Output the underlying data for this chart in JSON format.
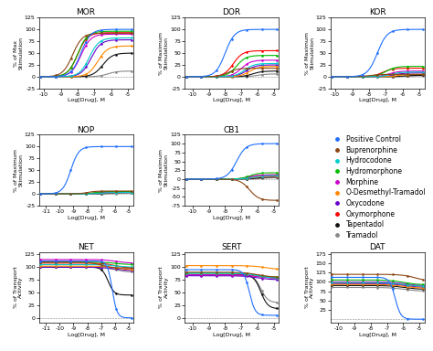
{
  "compounds": [
    "Positive Control",
    "Buprenorphine",
    "Hydrocodone",
    "Hydromorphone",
    "Morphine",
    "O-Desmethyl-Tramadol",
    "Oxycodone",
    "Oxymorphone",
    "Tapentadol",
    "Tramadol"
  ],
  "colors": [
    "#1E6FFF",
    "#8B4513",
    "#00CCCC",
    "#00BB00",
    "#CC00CC",
    "#FF8800",
    "#6600CC",
    "#FF0000",
    "#111111",
    "#888888"
  ],
  "subplots": {
    "MOR": {
      "xlabel": "Log[Drug], M",
      "ylabel": "% of Max\nStimulation",
      "xlim": [
        -10.3,
        -4.7
      ],
      "ylim": [
        -25,
        125
      ],
      "yticks": [
        -25,
        0,
        25,
        50,
        75,
        100,
        125
      ],
      "xticks": [
        -10,
        -9,
        -8,
        -7,
        -6,
        -5
      ],
      "curves": {
        "Positive Control": {
          "EC50": -7.8,
          "Emax": 100,
          "base": 0,
          "hill": 1.5
        },
        "Buprenorphine": {
          "EC50": -8.3,
          "Emax": 92,
          "base": 0,
          "hill": 1.5
        },
        "Hydromorphone": {
          "EC50": -8.0,
          "Emax": 96,
          "base": 0,
          "hill": 1.5
        },
        "Morphine": {
          "EC50": -7.8,
          "Emax": 90,
          "base": 0,
          "hill": 1.5
        },
        "Oxymorphone": {
          "EC50": -8.0,
          "Emax": 93,
          "base": 0,
          "hill": 1.5
        },
        "Hydrocodone": {
          "EC50": -7.3,
          "Emax": 82,
          "base": 0,
          "hill": 1.5
        },
        "Oxycodone": {
          "EC50": -7.2,
          "Emax": 78,
          "base": 0,
          "hill": 1.5
        },
        "O-Desmethyl-Tramadol": {
          "EC50": -6.8,
          "Emax": 65,
          "base": 0,
          "hill": 1.5
        },
        "Tapentadol": {
          "EC50": -6.5,
          "Emax": 50,
          "base": 0,
          "hill": 1.5
        },
        "Tramadol": {
          "EC50": -6.2,
          "Emax": 12,
          "base": 0,
          "hill": 1.5
        }
      }
    },
    "DOR": {
      "xlabel": "Log[Drug], M",
      "ylabel": "% of Maximum\nStimulation",
      "xlim": [
        -10.5,
        -4.7
      ],
      "ylim": [
        -25,
        125
      ],
      "yticks": [
        -25,
        0,
        25,
        50,
        75,
        100,
        125
      ],
      "xticks": [
        -10,
        -9,
        -8,
        -7,
        -6,
        -5
      ],
      "curves": {
        "Positive Control": {
          "EC50": -8.0,
          "Emax": 100,
          "base": 0,
          "hill": 1.5
        },
        "Oxymorphone": {
          "EC50": -7.5,
          "Emax": 55,
          "base": 0,
          "hill": 1.5
        },
        "Hydromorphone": {
          "EC50": -7.3,
          "Emax": 45,
          "base": 0,
          "hill": 1.5
        },
        "Morphine": {
          "EC50": -7.0,
          "Emax": 35,
          "base": 0,
          "hill": 1.5
        },
        "Hydrocodone": {
          "EC50": -6.8,
          "Emax": 28,
          "base": 0,
          "hill": 1.5
        },
        "Oxycodone": {
          "EC50": -6.7,
          "Emax": 25,
          "base": 0,
          "hill": 1.5
        },
        "O-Desmethyl-Tramadol": {
          "EC50": -6.5,
          "Emax": 22,
          "base": 0,
          "hill": 1.5
        },
        "Buprenorphine": {
          "EC50": -7.8,
          "Emax": 18,
          "base": 0,
          "hill": 1.5
        },
        "Tapentadol": {
          "EC50": -6.3,
          "Emax": 12,
          "base": 0,
          "hill": 1.5
        },
        "Tramadol": {
          "EC50": -6.0,
          "Emax": 6,
          "base": 0,
          "hill": 1.5
        }
      }
    },
    "KOR": {
      "xlabel": "Log[Drug], M",
      "ylabel": "% of Maximum\nStimulation",
      "xlim": [
        -10.3,
        -4.7
      ],
      "ylim": [
        -25,
        125
      ],
      "yticks": [
        -25,
        0,
        25,
        50,
        75,
        100,
        125
      ],
      "xticks": [
        -10,
        -9,
        -8,
        -7,
        -6,
        -5
      ],
      "curves": {
        "Positive Control": {
          "EC50": -7.5,
          "Emax": 100,
          "base": 0,
          "hill": 1.5
        },
        "Hydromorphone": {
          "EC50": -7.0,
          "Emax": 22,
          "base": 0,
          "hill": 1.5
        },
        "Oxymorphone": {
          "EC50": -7.2,
          "Emax": 18,
          "base": 0,
          "hill": 1.5
        },
        "Morphine": {
          "EC50": -6.8,
          "Emax": 12,
          "base": 0,
          "hill": 1.5
        },
        "Hydrocodone": {
          "EC50": -6.7,
          "Emax": 10,
          "base": 0,
          "hill": 1.5
        },
        "Oxycodone": {
          "EC50": -6.5,
          "Emax": 8,
          "base": 0,
          "hill": 1.5
        },
        "Buprenorphine": {
          "EC50": -8.0,
          "Emax": 5,
          "base": 0,
          "hill": 1.5
        },
        "O-Desmethyl-Tramadol": {
          "EC50": -6.3,
          "Emax": 5,
          "base": 0,
          "hill": 1.5
        },
        "Tapentadol": {
          "EC50": -6.0,
          "Emax": 3,
          "base": 0,
          "hill": 1.5
        },
        "Tramadol": {
          "EC50": -5.8,
          "Emax": 2,
          "base": 0,
          "hill": 1.5
        }
      }
    },
    "NOP": {
      "xlabel": "Log[Drug], M",
      "ylabel": "% of Maximum\nStimulation",
      "xlim": [
        -11.5,
        -4.7
      ],
      "ylim": [
        -25,
        125
      ],
      "yticks": [
        -25,
        0,
        25,
        50,
        75,
        100,
        125
      ],
      "xticks": [
        -11,
        -10,
        -9,
        -8,
        -7,
        -6,
        -5
      ],
      "curves": {
        "Positive Control": {
          "EC50": -9.2,
          "Emax": 100,
          "base": 0,
          "hill": 1.5
        },
        "Buprenorphine": {
          "EC50": -8.0,
          "Emax": 6,
          "base": 0,
          "hill": 1.5
        },
        "Hydromorphone": {
          "EC50": -7.5,
          "Emax": 5,
          "base": 0,
          "hill": 1.5
        },
        "Morphine": {
          "EC50": -7.2,
          "Emax": 4,
          "base": 0,
          "hill": 1.5
        },
        "Oxymorphone": {
          "EC50": -7.5,
          "Emax": 4,
          "base": 0,
          "hill": 1.5
        },
        "Hydrocodone": {
          "EC50": -7.0,
          "Emax": 3,
          "base": 0,
          "hill": 1.5
        },
        "O-Desmethyl-Tramadol": {
          "EC50": -7.0,
          "Emax": 3,
          "base": 0,
          "hill": 1.5
        },
        "Oxycodone": {
          "EC50": -7.0,
          "Emax": 3,
          "base": 0,
          "hill": 1.5
        },
        "Tapentadol": {
          "EC50": -6.5,
          "Emax": 3,
          "base": 0,
          "hill": 1.5
        },
        "Tramadol": {
          "EC50": -6.0,
          "Emax": 2,
          "base": 0,
          "hill": 1.5
        }
      }
    },
    "CB1": {
      "xlabel": "Log[Drug], M",
      "ylabel": "% of Maximum\nStimulation",
      "xlim": [
        -10.5,
        -4.7
      ],
      "ylim": [
        -75,
        125
      ],
      "yticks": [
        -75,
        -50,
        -25,
        0,
        25,
        50,
        75,
        100,
        125
      ],
      "xticks": [
        -10,
        -9,
        -8,
        -7,
        -6,
        -5
      ],
      "curves": {
        "Positive Control": {
          "EC50": -7.3,
          "Emax": 100,
          "base": 0,
          "hill": 1.5
        },
        "Buprenorphine": {
          "EC50": -6.5,
          "Emax": -60,
          "base": 0,
          "hill": 1.5
        },
        "Hydromorphone": {
          "EC50": -6.5,
          "Emax": 18,
          "base": 0,
          "hill": 1.5
        },
        "Morphine": {
          "EC50": -6.5,
          "Emax": 12,
          "base": 0,
          "hill": 1.5
        },
        "Oxymorphone": {
          "EC50": -6.5,
          "Emax": 12,
          "base": 0,
          "hill": 1.5
        },
        "Hydrocodone": {
          "EC50": -6.3,
          "Emax": 10,
          "base": 0,
          "hill": 1.5
        },
        "Oxycodone": {
          "EC50": -6.3,
          "Emax": 8,
          "base": 0,
          "hill": 1.5
        },
        "O-Desmethyl-Tramadol": {
          "EC50": -6.3,
          "Emax": 8,
          "base": 0,
          "hill": 1.5
        },
        "Tapentadol": {
          "EC50": -6.0,
          "Emax": 6,
          "base": 0,
          "hill": 1.5
        },
        "Tramadol": {
          "EC50": -5.8,
          "Emax": 4,
          "base": 0,
          "hill": 1.5
        }
      }
    },
    "NET": {
      "xlabel": "Log[Drug], M",
      "ylabel": "% of Transport\nActivity",
      "xlim": [
        -11.5,
        -4.7
      ],
      "ylim": [
        -10,
        130
      ],
      "yticks": [
        0,
        25,
        50,
        75,
        100,
        125
      ],
      "xticks": [
        -11,
        -10,
        -9,
        -8,
        -7,
        -6,
        -5
      ],
      "inhibition": true,
      "curves": {
        "Positive Control": {
          "EC50": -6.2,
          "Emin": 0,
          "base": 112,
          "hill": 2.5
        },
        "Morphine": {
          "EC50": -6.0,
          "Emin": 108,
          "base": 115,
          "hill": 1.0
        },
        "Hydromorphone": {
          "EC50": -6.0,
          "Emin": 105,
          "base": 110,
          "hill": 1.0
        },
        "Buprenorphine": {
          "EC50": -7.0,
          "Emin": 98,
          "base": 110,
          "hill": 1.0
        },
        "Hydrocodone": {
          "EC50": -6.0,
          "Emin": 100,
          "base": 105,
          "hill": 1.0
        },
        "Oxymorphone": {
          "EC50": -6.0,
          "Emin": 98,
          "base": 108,
          "hill": 1.0
        },
        "O-Desmethyl-Tramadol": {
          "EC50": -6.0,
          "Emin": 95,
          "base": 102,
          "hill": 1.0
        },
        "Oxycodone": {
          "EC50": -6.0,
          "Emin": 93,
          "base": 100,
          "hill": 1.0
        },
        "Tapentadol": {
          "EC50": -6.5,
          "Emin": 45,
          "base": 100,
          "hill": 2.0
        },
        "Tramadol": {
          "EC50": -6.0,
          "Emin": 90,
          "base": 100,
          "hill": 1.0
        }
      }
    },
    "SERT": {
      "xlabel": "Log[Drug], M",
      "ylabel": "% of Transport\nActivity",
      "xlim": [
        -10.5,
        -4.7
      ],
      "ylim": [
        -10,
        130
      ],
      "yticks": [
        0,
        25,
        50,
        75,
        100,
        125
      ],
      "xticks": [
        -10,
        -9,
        -8,
        -7,
        -6,
        -5
      ],
      "inhibition": true,
      "curves": {
        "Positive Control": {
          "EC50": -6.5,
          "Emin": 5,
          "base": 95,
          "hill": 2.5
        },
        "Tapentadol": {
          "EC50": -5.8,
          "Emin": 18,
          "base": 85,
          "hill": 2.0
        },
        "Tramadol": {
          "EC50": -5.8,
          "Emin": 30,
          "base": 85,
          "hill": 2.0
        },
        "O-Desmethyl-Tramadol": {
          "EC50": -5.5,
          "Emin": 95,
          "base": 103,
          "hill": 1.0
        },
        "Buprenorphine": {
          "EC50": -6.0,
          "Emin": 80,
          "base": 90,
          "hill": 1.0
        },
        "Hydrocodone": {
          "EC50": -6.0,
          "Emin": 78,
          "base": 88,
          "hill": 1.0
        },
        "Hydromorphone": {
          "EC50": -6.0,
          "Emin": 80,
          "base": 88,
          "hill": 1.0
        },
        "Morphine": {
          "EC50": -6.0,
          "Emin": 78,
          "base": 85,
          "hill": 1.0
        },
        "Oxycodone": {
          "EC50": -6.0,
          "Emin": 75,
          "base": 83,
          "hill": 1.0
        },
        "Oxymorphone": {
          "EC50": -6.0,
          "Emin": 78,
          "base": 85,
          "hill": 1.0
        }
      }
    },
    "DAT": {
      "xlabel": "Log[Drug], M",
      "ylabel": "% of Transport\nActivity",
      "xlim": [
        -10.5,
        -4.7
      ],
      "ylim": [
        -10,
        180
      ],
      "yticks": [
        25,
        50,
        75,
        100,
        125,
        150,
        175
      ],
      "xticks": [
        -10,
        -9,
        -8,
        -7,
        -6,
        -5
      ],
      "inhibition": true,
      "curves": {
        "Positive Control": {
          "EC50": -6.5,
          "Emin": 0,
          "base": 112,
          "hill": 2.5
        },
        "Buprenorphine": {
          "EC50": -5.2,
          "Emin": 100,
          "base": 120,
          "hill": 1.0,
          "rising": true
        },
        "Hydromorphone": {
          "EC50": -6.0,
          "Emin": 92,
          "base": 105,
          "hill": 1.0
        },
        "Morphine": {
          "EC50": -6.0,
          "Emin": 90,
          "base": 100,
          "hill": 1.0
        },
        "Oxymorphone": {
          "EC50": -6.0,
          "Emin": 88,
          "base": 98,
          "hill": 1.0
        },
        "Hydrocodone": {
          "EC50": -6.0,
          "Emin": 88,
          "base": 98,
          "hill": 1.0
        },
        "Oxycodone": {
          "EC50": -6.0,
          "Emin": 85,
          "base": 95,
          "hill": 1.0
        },
        "O-Desmethyl-Tramadol": {
          "EC50": -6.0,
          "Emin": 83,
          "base": 93,
          "hill": 1.0
        },
        "Tapentadol": {
          "EC50": -6.0,
          "Emin": 80,
          "base": 90,
          "hill": 1.0
        },
        "Tramadol": {
          "EC50": -6.0,
          "Emin": 75,
          "base": 85,
          "hill": 1.0
        }
      }
    }
  },
  "background_color": "#ffffff",
  "fontsize_title": 6.5,
  "fontsize_label": 4.5,
  "fontsize_tick": 4.5,
  "fontsize_legend": 5.5
}
